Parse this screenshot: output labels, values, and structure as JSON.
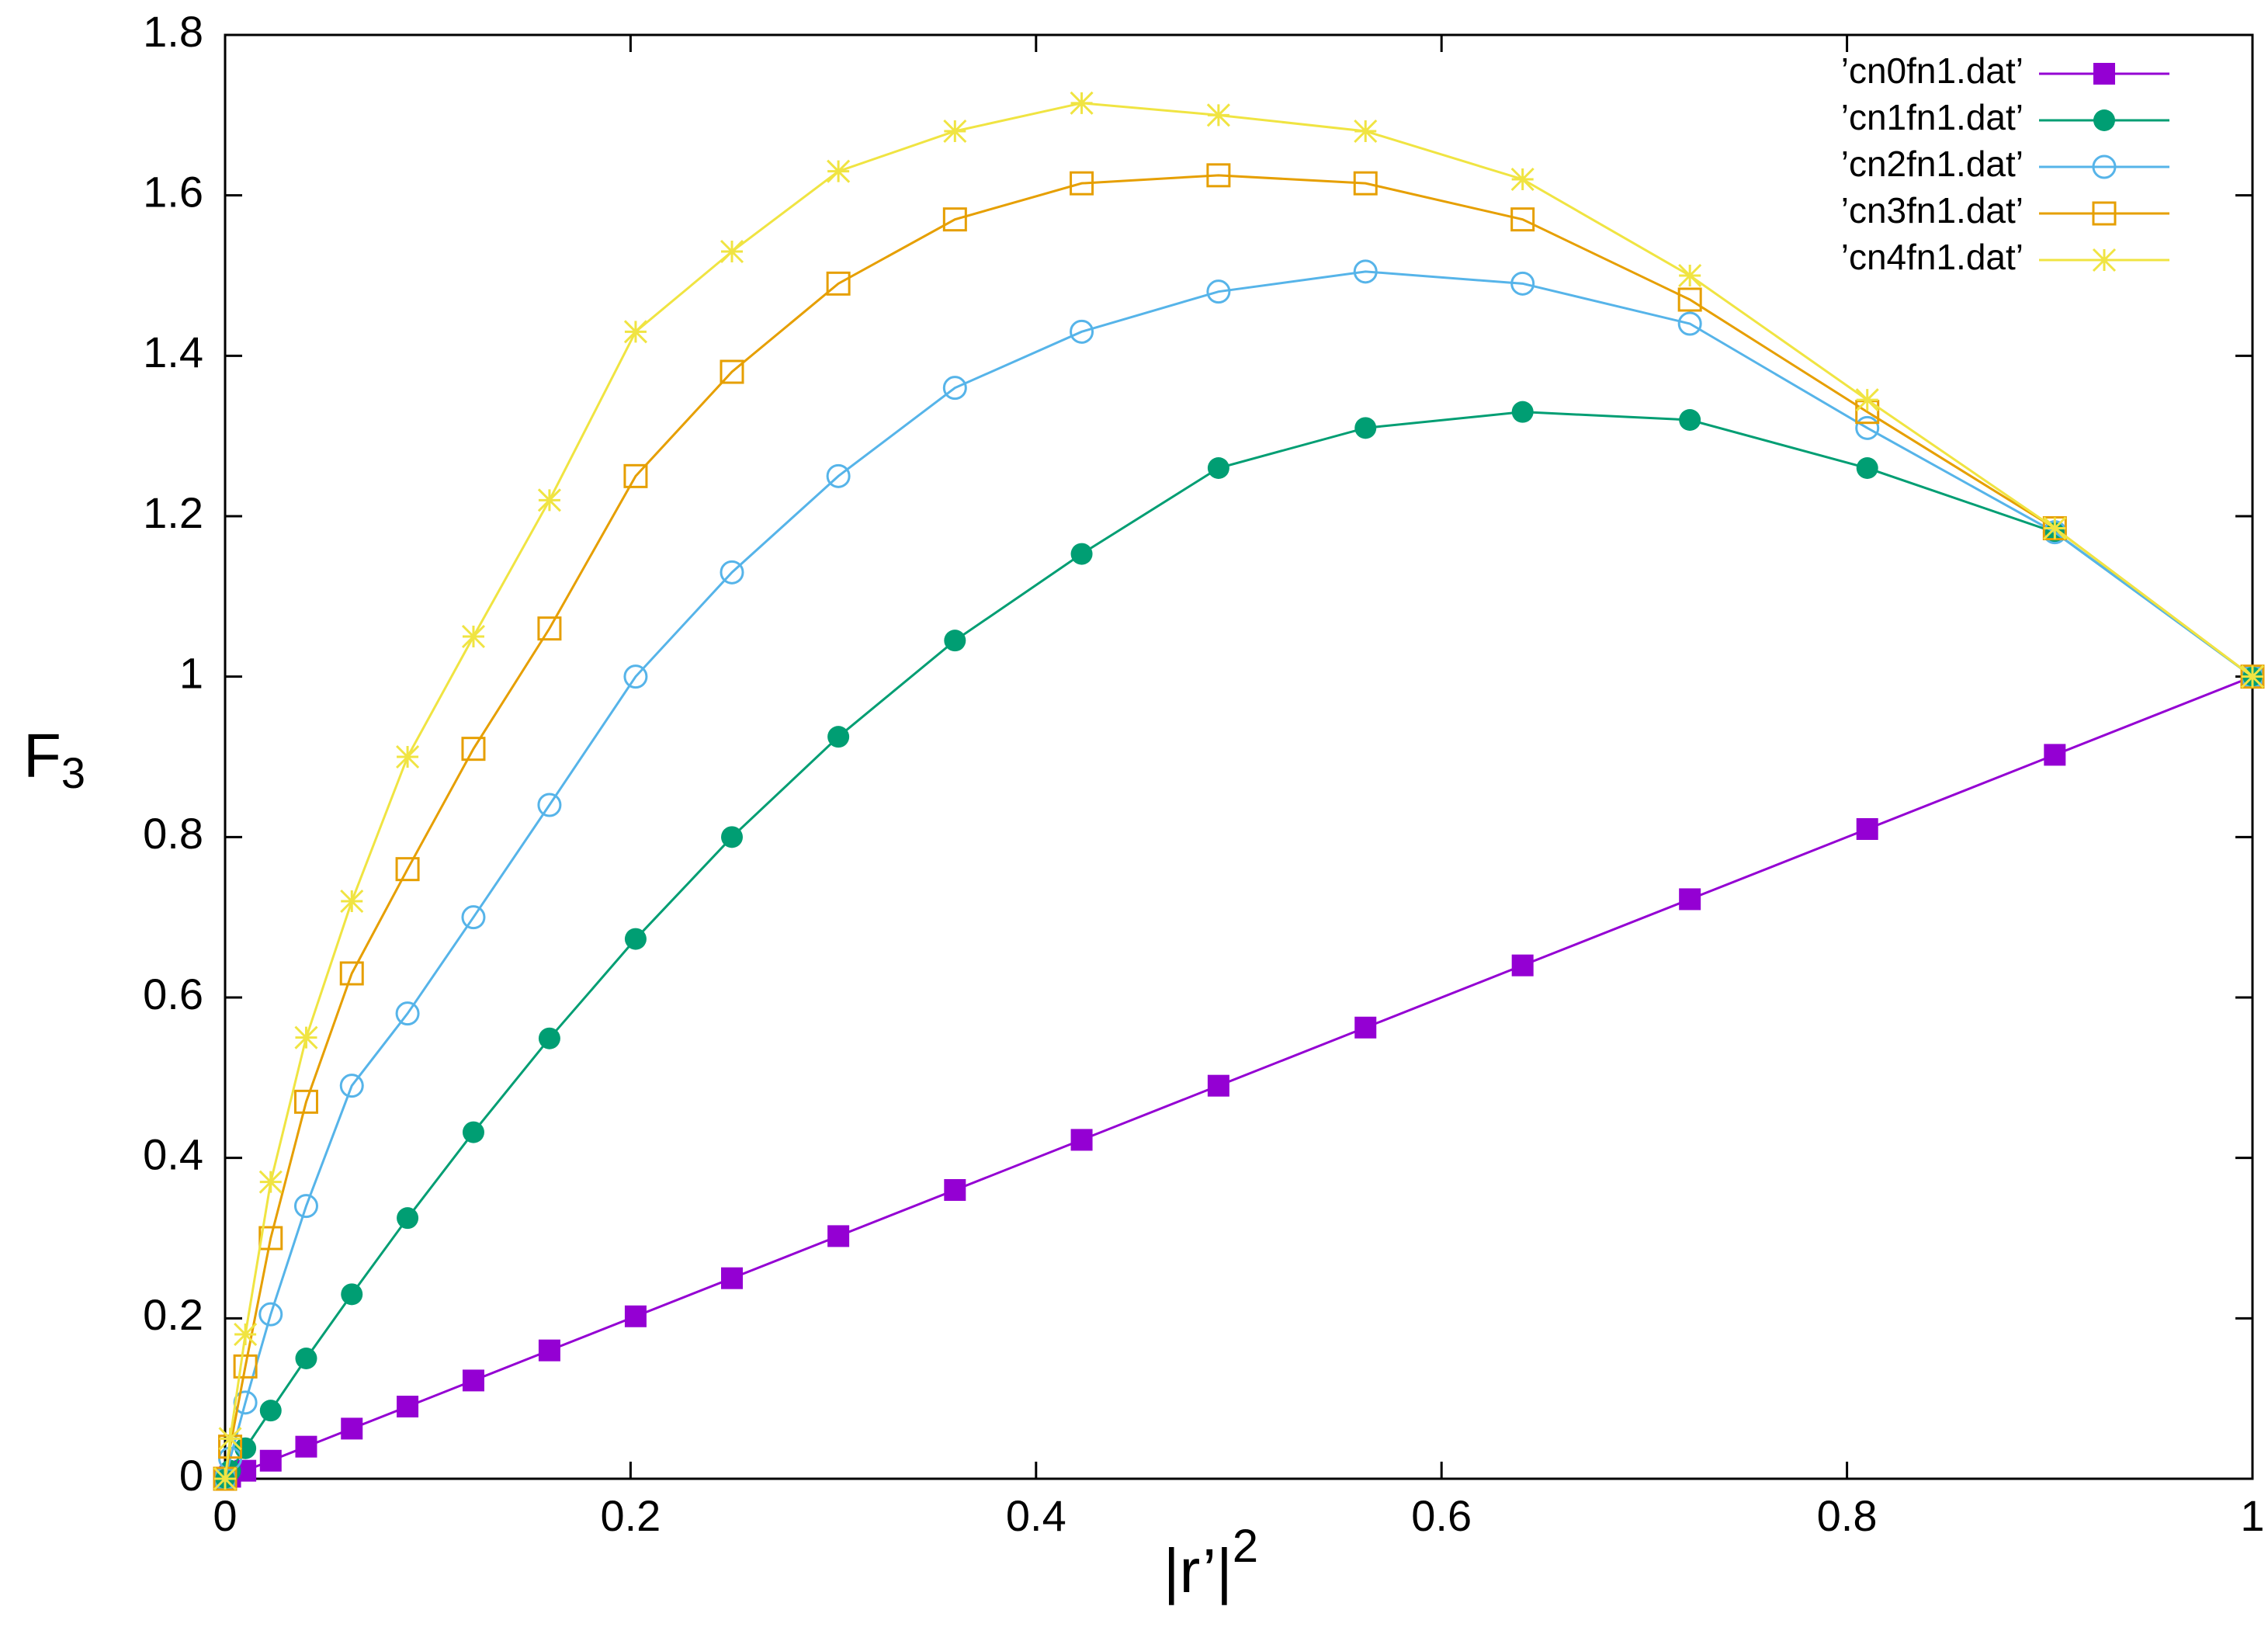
{
  "chart_data": {
    "type": "line",
    "x": [
      0,
      0.0025,
      0.01,
      0.0225,
      0.04,
      0.0625,
      0.09,
      0.1225,
      0.16,
      0.2025,
      0.25,
      0.3025,
      0.36,
      0.4225,
      0.49,
      0.5625,
      0.64,
      0.7225,
      0.81,
      0.9025,
      1
    ],
    "series": [
      {
        "name": "’cn0fn1.dat’",
        "color": "#9400d3",
        "marker": "filled-square",
        "values": [
          0,
          0.0025,
          0.01,
          0.0225,
          0.04,
          0.0625,
          0.09,
          0.1225,
          0.16,
          0.2025,
          0.25,
          0.3025,
          0.36,
          0.4225,
          0.49,
          0.5625,
          0.64,
          0.7225,
          0.81,
          0.9025,
          1
        ]
      },
      {
        "name": "’cn1fn1.dat’",
        "color": "#009e73",
        "marker": "filled-circle",
        "values": [
          0,
          0.01,
          0.038,
          0.085,
          0.15,
          0.23,
          0.325,
          0.432,
          0.549,
          0.673,
          0.8,
          0.925,
          1.045,
          1.153,
          1.26,
          1.31,
          1.33,
          1.32,
          1.26,
          1.18,
          1
        ]
      },
      {
        "name": "’cn2fn1.dat’",
        "color": "#56b4e9",
        "marker": "open-circle",
        "values": [
          0,
          0.025,
          0.095,
          0.205,
          0.34,
          0.49,
          0.58,
          0.7,
          0.84,
          1.0,
          1.13,
          1.25,
          1.36,
          1.43,
          1.48,
          1.505,
          1.49,
          1.44,
          1.31,
          1.18,
          1
        ]
      },
      {
        "name": "’cn3fn1.dat’",
        "color": "#e69f00",
        "marker": "open-square",
        "values": [
          0,
          0.04,
          0.14,
          0.3,
          0.47,
          0.63,
          0.76,
          0.91,
          1.06,
          1.25,
          1.38,
          1.49,
          1.57,
          1.615,
          1.625,
          1.615,
          1.57,
          1.47,
          1.33,
          1.185,
          1
        ]
      },
      {
        "name": "’cn4fn1.dat’",
        "color": "#f0e442",
        "marker": "asterisk",
        "values": [
          0,
          0.05,
          0.18,
          0.37,
          0.55,
          0.72,
          0.9,
          1.05,
          1.22,
          1.43,
          1.53,
          1.63,
          1.68,
          1.715,
          1.7,
          1.68,
          1.62,
          1.5,
          1.345,
          1.185,
          1
        ]
      }
    ],
    "xlim": [
      0,
      1
    ],
    "xticks": [
      0,
      0.2,
      0.4,
      0.6,
      0.8,
      1
    ],
    "ylim": [
      0,
      1.8
    ],
    "yticks": [
      0,
      0.2,
      0.4,
      0.6,
      0.8,
      1,
      1.2,
      1.4,
      1.6,
      1.8
    ],
    "xlabel": "|r’|",
    "xlabel_superscript": "2",
    "ylabel": "F",
    "ylabel_subscript": "3",
    "legend": "top-right",
    "grid": false
  }
}
